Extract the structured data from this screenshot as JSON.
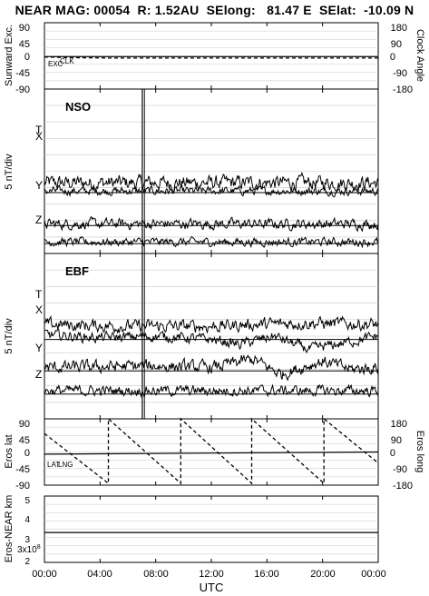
{
  "title": "NEAR MAG: 00054  R: 1.52AU  SElong:   81.47 E  SElat:  -10.09 N",
  "colors": {
    "ink": "#000000",
    "grid": "#c8c8c8",
    "background": "#ffffff"
  },
  "chart_data": [
    {
      "type": "line",
      "panel": "sunward",
      "ylabel": "Sunward Exc.",
      "ylabel_right": "Clock Angle",
      "yticks": [
        "90",
        "45",
        "0",
        "-45",
        "-90"
      ],
      "yticks_right": [
        "180",
        "90",
        "0",
        "-90",
        "-180"
      ],
      "ylim": [
        -90,
        90
      ],
      "ylim_right": [
        -180,
        180
      ],
      "series_labels": [
        "EXC",
        "CLK"
      ],
      "series": [
        {
          "name": "EXC",
          "style": "dashed",
          "x": [
            0,
            2,
            5,
            8,
            12,
            16,
            20,
            24
          ],
          "values": [
            -3,
            -5,
            -6,
            -6,
            -6,
            -6,
            -6,
            -6
          ]
        },
        {
          "name": "CLK",
          "style": "solid",
          "x": [
            0,
            24
          ],
          "values": [
            -2,
            -2
          ]
        }
      ],
      "grid": true
    },
    {
      "type": "line",
      "panel": "NSO",
      "panel_label": "NSO",
      "ylabel": "5 nT/div",
      "components": [
        "T",
        "X",
        "Y",
        "Z"
      ],
      "series": [
        {
          "name": "T",
          "baseline_div": 4.0,
          "trend": [
            [
              0,
              0.3
            ],
            [
              24,
              0.3
            ]
          ],
          "noise": 0.35
        },
        {
          "name": "X",
          "baseline_div": 3.7,
          "trend": [
            [
              0,
              0.1
            ],
            [
              24,
              0.1
            ]
          ],
          "noise": 0.2
        },
        {
          "name": "Y",
          "baseline_div": 1.7,
          "trend": [
            [
              0,
              0.1
            ],
            [
              24,
              0.1
            ]
          ],
          "noise": 0.25
        },
        {
          "name": "Z",
          "baseline_div": 0.6,
          "trend": [
            [
              0,
              0.1
            ],
            [
              24,
              0.1
            ]
          ],
          "noise": 0.2
        }
      ],
      "data_gap_x": 7.1,
      "grid": true
    },
    {
      "type": "line",
      "panel": "EBF",
      "panel_label": "EBF",
      "ylabel": "5 nT/div",
      "components": [
        "T",
        "X",
        "Y",
        "Z"
      ],
      "series": [
        {
          "name": "T",
          "baseline_div": 5.2,
          "trend": [
            [
              0,
              0.5
            ],
            [
              6,
              0.4
            ],
            [
              12,
              0.4
            ],
            [
              15,
              0.5
            ],
            [
              19,
              0.6
            ],
            [
              24,
              0.5
            ]
          ],
          "noise": 0.3
        },
        {
          "name": "X",
          "baseline_div": 4.8,
          "trend": [
            [
              0,
              0.3
            ],
            [
              4,
              0.1
            ],
            [
              8,
              0.2
            ],
            [
              12,
              0.0
            ],
            [
              14,
              -0.3
            ],
            [
              16.5,
              0.2
            ],
            [
              19,
              -0.6
            ],
            [
              21,
              -0.3
            ],
            [
              24,
              0.2
            ]
          ],
          "noise": 0.25
        },
        {
          "name": "Y",
          "baseline_div": 2.9,
          "trend": [
            [
              0,
              0.2
            ],
            [
              8,
              0.3
            ],
            [
              12,
              0.2
            ],
            [
              15,
              0.7
            ],
            [
              17,
              -0.2
            ],
            [
              20,
              0.6
            ],
            [
              22,
              0.1
            ],
            [
              24,
              0.2
            ]
          ],
          "noise": 0.3
        },
        {
          "name": "Z",
          "baseline_div": 1.5,
          "trend": [
            [
              0,
              0.2
            ],
            [
              24,
              0.2
            ]
          ],
          "noise": 0.25
        }
      ],
      "data_gap_x": 7.1,
      "grid": true
    },
    {
      "type": "line",
      "panel": "eros_position",
      "ylabel": "Eros lat",
      "ylabel_right": "Eros long",
      "yticks": [
        "90",
        "45",
        "0",
        "-45",
        "-90"
      ],
      "yticks_right": [
        "180",
        "90",
        "0",
        "-90",
        "-180"
      ],
      "ylim": [
        -90,
        90
      ],
      "ylim_right": [
        -180,
        180
      ],
      "series_labels": [
        "LAT",
        "LNG"
      ],
      "series": [
        {
          "name": "LAT",
          "style": "solid",
          "x": [
            0,
            24
          ],
          "values": [
            -6,
            0
          ]
        },
        {
          "name": "LNG",
          "style": "dashed",
          "x": [
            0,
            4.6,
            4.6,
            9.8,
            9.8,
            14.9,
            14.9,
            20.1,
            20.1,
            24
          ],
          "values": [
            100,
            -170,
            180,
            -170,
            180,
            -170,
            180,
            -170,
            180,
            -60
          ]
        }
      ],
      "grid": true
    },
    {
      "type": "line",
      "panel": "eros_near_distance",
      "ylabel": "Eros-NEAR km",
      "yticks": [
        "5",
        "4",
        "3",
        "2"
      ],
      "ylim": [
        1.5,
        5.5
      ],
      "log_scale": true,
      "minor_label": "3x10",
      "minor_label_exp": "8",
      "series": [
        {
          "name": "distance",
          "x": [
            0,
            24
          ],
          "values": [
            3.3,
            3.3
          ]
        }
      ],
      "grid": true
    }
  ],
  "xaxis": {
    "label": "UTC",
    "xlim": [
      0,
      24
    ],
    "ticks": [
      {
        "value": 0,
        "label": "00:00"
      },
      {
        "value": 4,
        "label": "04:00"
      },
      {
        "value": 8,
        "label": "08:00"
      },
      {
        "value": 12,
        "label": "12:00"
      },
      {
        "value": 16,
        "label": "16:00"
      },
      {
        "value": 20,
        "label": "20:00"
      },
      {
        "value": 24,
        "label": "00:00"
      }
    ]
  }
}
